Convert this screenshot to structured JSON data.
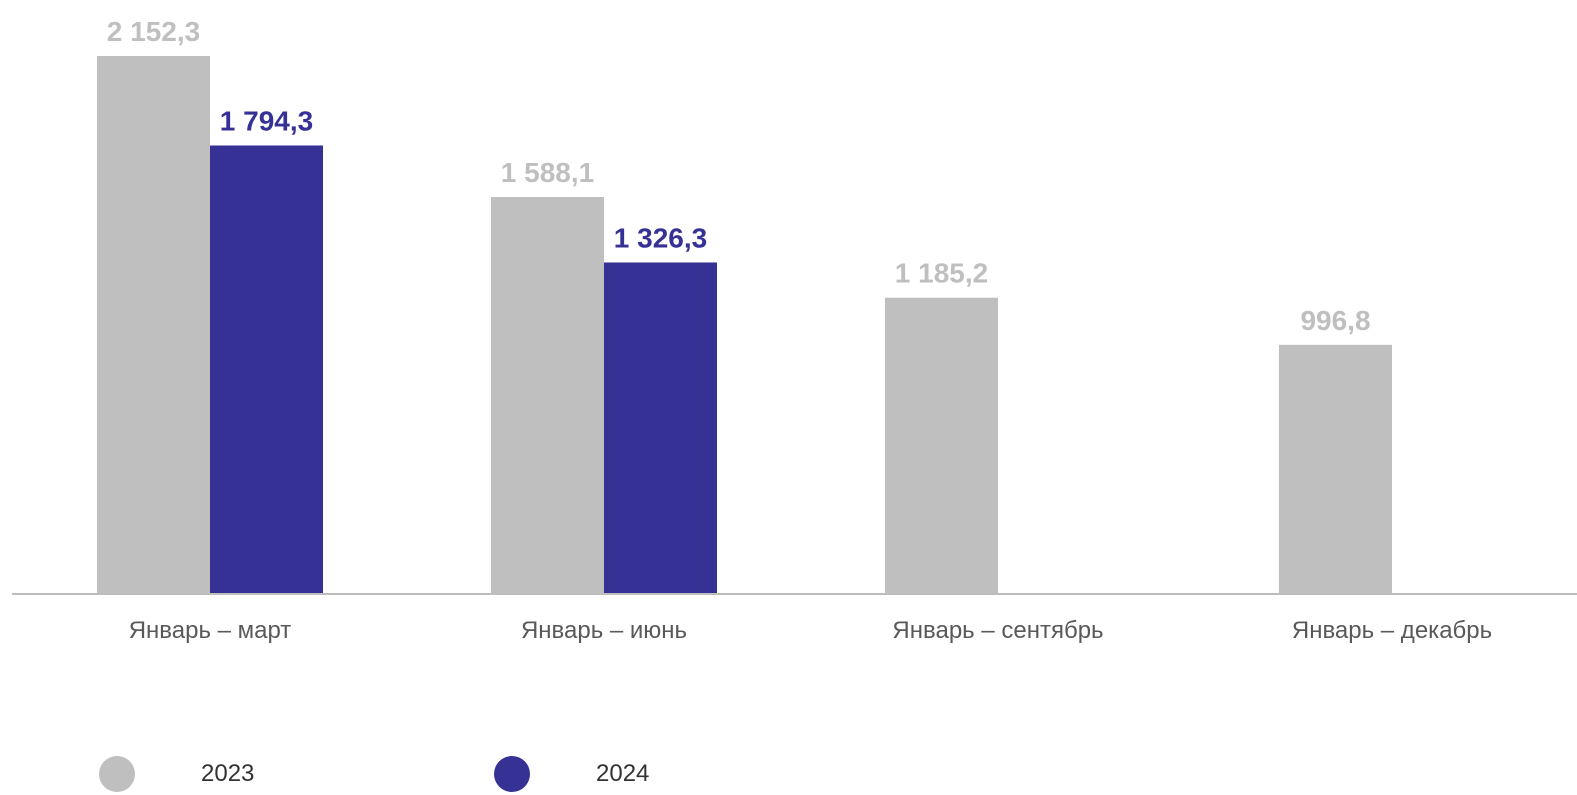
{
  "chart_data": {
    "type": "bar",
    "categories": [
      "Январь – март",
      "Январь – июнь",
      "Январь – сентябрь",
      "Январь – декабрь"
    ],
    "series": [
      {
        "name": "2023",
        "color": "#bfbfbf",
        "values": [
          2152.3,
          1588.1,
          1185.2,
          996.8
        ],
        "labels": [
          "2 152,3",
          "1 588,1",
          "1 185,2",
          "996,8"
        ]
      },
      {
        "name": "2024",
        "color": "#353195",
        "values": [
          1794.3,
          1326.3,
          null,
          null
        ],
        "labels": [
          "1 794,3",
          "1 326,3",
          null,
          null
        ]
      }
    ],
    "ylim": [
      0,
      2152.3
    ],
    "grid": false,
    "legend_position": "bottom-left"
  }
}
